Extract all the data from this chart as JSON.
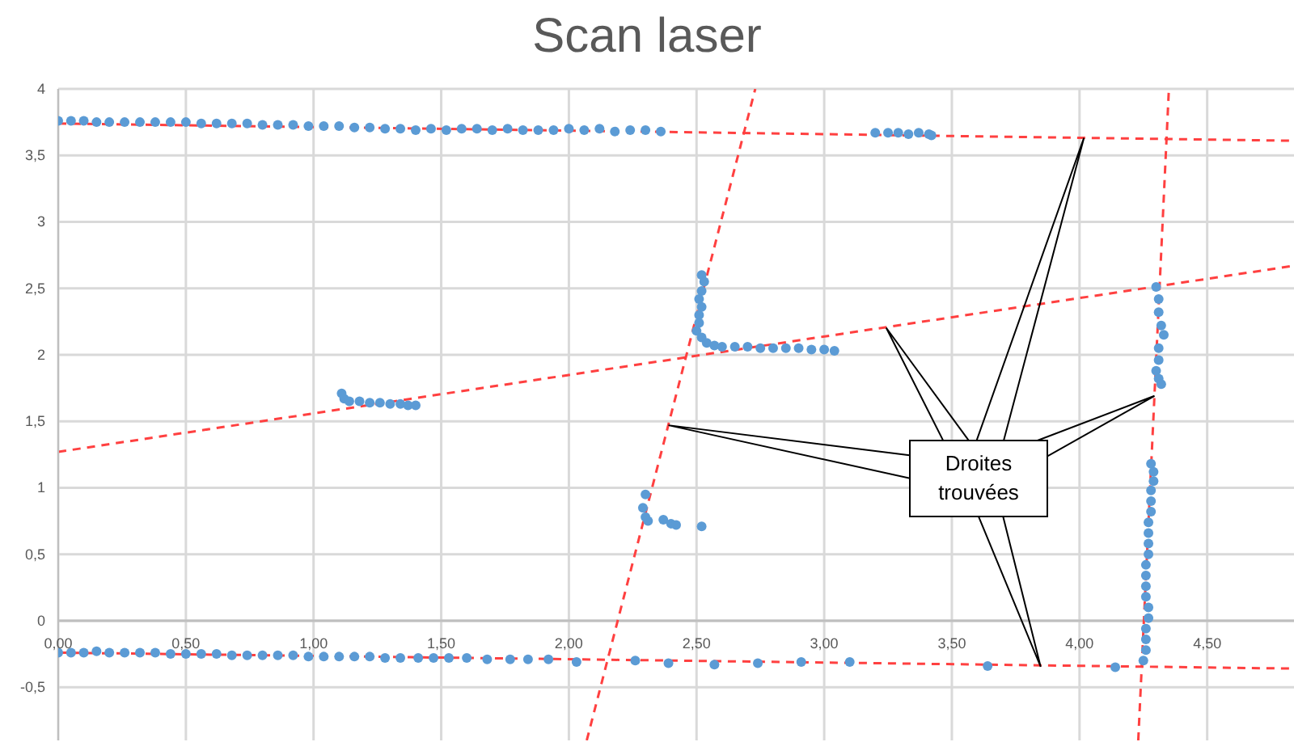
{
  "chart_data": {
    "type": "scatter",
    "title": "Scan laser",
    "grid": true,
    "legend": false,
    "annotations": [
      "Droites trouvées"
    ],
    "xlim": [
      0,
      4.84
    ],
    "ylim": [
      -0.9,
      4
    ],
    "xticks": [
      {
        "value": 0,
        "label": "0,00"
      },
      {
        "value": 0.5,
        "label": "0,50"
      },
      {
        "value": 1,
        "label": "1,00"
      },
      {
        "value": 1.5,
        "label": "1,50"
      },
      {
        "value": 2,
        "label": "2,00"
      },
      {
        "value": 2.5,
        "label": "2,50"
      },
      {
        "value": 3,
        "label": "3,00"
      },
      {
        "value": 3.5,
        "label": "3,50"
      },
      {
        "value": 4,
        "label": "4,00"
      },
      {
        "value": 4.5,
        "label": "4,50"
      }
    ],
    "yticks": [
      {
        "value": -0.5,
        "label": "-0,5"
      },
      0,
      {
        "value": 0.5,
        "label": "0,5"
      },
      1,
      {
        "value": 1.5,
        "label": "1,5"
      },
      2,
      {
        "value": 2.5,
        "label": "2,5"
      },
      3,
      {
        "value": 3.5,
        "label": "3,5"
      },
      4
    ],
    "series": [
      {
        "type": "scatter",
        "color": "#5b9bd5",
        "marker": "circle",
        "x": [
          0.0,
          0.05,
          0.1,
          0.15,
          0.2,
          0.26,
          0.32,
          0.38,
          0.44,
          0.5,
          0.56,
          0.62,
          0.68,
          0.74,
          0.8,
          0.86,
          0.92,
          0.98,
          1.04,
          1.1,
          1.16,
          1.22,
          1.28,
          1.34,
          1.4,
          1.46,
          1.52,
          1.58,
          1.64,
          1.7,
          1.76,
          1.82,
          1.88,
          1.94,
          2.0,
          2.06,
          2.12,
          2.18,
          2.24,
          2.3,
          2.36,
          3.2,
          3.25,
          3.29,
          3.33,
          3.37,
          3.41,
          3.42,
          1.11,
          1.12,
          1.14,
          1.18,
          1.22,
          1.26,
          1.3,
          1.34,
          1.37,
          1.4,
          2.52,
          2.53,
          2.52,
          2.51,
          2.52,
          2.51,
          2.51,
          2.5,
          2.52,
          2.54,
          2.57,
          2.6,
          2.65,
          2.7,
          2.75,
          2.8,
          2.85,
          2.9,
          2.95,
          3.0,
          3.04,
          2.3,
          2.29,
          2.3,
          2.31,
          2.37,
          2.4,
          2.42,
          2.52,
          4.3,
          4.31,
          4.31,
          4.32,
          4.33,
          4.31,
          4.31,
          4.3,
          4.31,
          4.32,
          4.28,
          4.29,
          4.29,
          4.28,
          4.28,
          4.28,
          4.27,
          4.27,
          4.27,
          4.27,
          4.26,
          4.26,
          4.26,
          4.26,
          4.27,
          4.27,
          4.26,
          4.26,
          4.26,
          4.25,
          4.14,
          0.0,
          0.05,
          0.1,
          0.15,
          0.2,
          0.26,
          0.32,
          0.38,
          0.44,
          0.5,
          0.56,
          0.62,
          0.68,
          0.74,
          0.8,
          0.86,
          0.92,
          0.98,
          1.04,
          1.1,
          1.16,
          1.22,
          1.28,
          1.34,
          1.41,
          1.47,
          1.53,
          1.6,
          1.68,
          1.77,
          1.84,
          1.92,
          2.03,
          2.26,
          2.39,
          2.57,
          2.74,
          2.91,
          3.1,
          3.64
        ],
        "values": [
          3.76,
          3.76,
          3.76,
          3.75,
          3.75,
          3.75,
          3.75,
          3.75,
          3.75,
          3.75,
          3.74,
          3.74,
          3.74,
          3.74,
          3.73,
          3.73,
          3.73,
          3.72,
          3.72,
          3.72,
          3.71,
          3.71,
          3.7,
          3.7,
          3.69,
          3.7,
          3.69,
          3.7,
          3.7,
          3.69,
          3.7,
          3.69,
          3.69,
          3.69,
          3.7,
          3.69,
          3.7,
          3.68,
          3.69,
          3.69,
          3.68,
          3.67,
          3.67,
          3.67,
          3.66,
          3.67,
          3.66,
          3.65,
          1.71,
          1.67,
          1.65,
          1.65,
          1.64,
          1.64,
          1.63,
          1.63,
          1.62,
          1.62,
          2.6,
          2.55,
          2.48,
          2.42,
          2.36,
          2.3,
          2.24,
          2.18,
          2.13,
          2.09,
          2.07,
          2.06,
          2.06,
          2.06,
          2.05,
          2.05,
          2.05,
          2.05,
          2.04,
          2.04,
          2.03,
          0.95,
          0.85,
          0.78,
          0.75,
          0.76,
          0.73,
          0.72,
          0.71,
          2.51,
          2.42,
          2.32,
          2.22,
          2.15,
          2.05,
          1.96,
          1.88,
          1.82,
          1.78,
          1.18,
          1.12,
          1.05,
          0.98,
          0.9,
          0.82,
          0.74,
          0.66,
          0.58,
          0.5,
          0.42,
          0.34,
          0.26,
          0.18,
          0.1,
          0.02,
          -0.06,
          -0.14,
          -0.22,
          -0.3,
          -0.35,
          -0.24,
          -0.24,
          -0.24,
          -0.23,
          -0.24,
          -0.24,
          -0.24,
          -0.24,
          -0.25,
          -0.25,
          -0.25,
          -0.25,
          -0.26,
          -0.26,
          -0.26,
          -0.26,
          -0.26,
          -0.27,
          -0.27,
          -0.27,
          -0.27,
          -0.27,
          -0.28,
          -0.28,
          -0.28,
          -0.28,
          -0.28,
          -0.28,
          -0.29,
          -0.29,
          -0.29,
          -0.29,
          -0.31,
          -0.3,
          -0.32,
          -0.33,
          -0.32,
          -0.31,
          -0.31,
          -0.34
        ]
      },
      {
        "type": "line",
        "color": "#ff4040",
        "line_style": "dashed",
        "x": [
          0,
          4.84
        ],
        "values": [
          3.74,
          3.61
        ]
      },
      {
        "type": "line",
        "color": "#ff4040",
        "line_style": "dashed",
        "x": [
          0,
          4.84
        ],
        "values": [
          1.27,
          2.67
        ]
      },
      {
        "type": "line",
        "color": "#ff4040",
        "line_style": "dashed",
        "x": [
          0,
          4.84
        ],
        "values": [
          -0.24,
          -0.36
        ]
      },
      {
        "type": "line",
        "color": "#ff4040",
        "line_style": "dashed",
        "x": [
          2.07,
          2.73
        ],
        "values": [
          -0.9,
          4
        ]
      },
      {
        "type": "line",
        "color": "#ff4040",
        "line_style": "dashed",
        "x": [
          4.23,
          4.35
        ],
        "values": [
          -0.9,
          4
        ]
      }
    ]
  }
}
